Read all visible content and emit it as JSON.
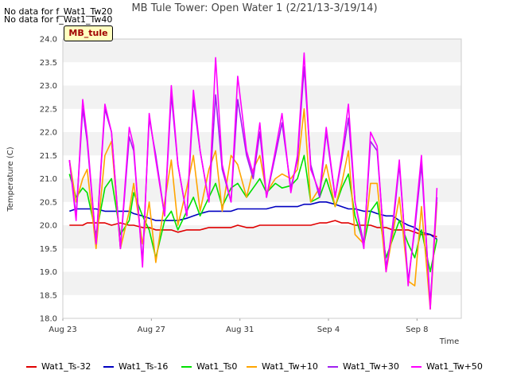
{
  "nodata_messages": [
    "No data for f_Wat1_Tw20",
    "No data for f_Wat1_Tw40"
  ],
  "badge_label": "MB_tule",
  "chart_data": {
    "type": "line",
    "title": "MB Tule Tower: Open Water 1 (2/21/13-3/19/14)",
    "xlabel": "Time",
    "ylabel": "Temperature (C)",
    "x_ticks": [
      "Aug 23",
      "Aug 27",
      "Aug 31",
      "Sep 4",
      "Sep 8"
    ],
    "x_tick_days": [
      0,
      4,
      8,
      12,
      16
    ],
    "xlim_days": [
      0,
      18
    ],
    "ylim": [
      18.0,
      24.0
    ],
    "y_ticks": [
      "18.0",
      "18.5",
      "19.0",
      "19.5",
      "20.0",
      "20.5",
      "21.0",
      "21.5",
      "22.0",
      "22.5",
      "23.0",
      "23.5",
      "24.0"
    ],
    "grid": "horizontal alternating bands",
    "legend_position": "bottom",
    "x_days": [
      0.3,
      0.6,
      0.9,
      1.1,
      1.5,
      1.9,
      2.2,
      2.6,
      3.0,
      3.2,
      3.6,
      3.9,
      4.2,
      4.6,
      4.9,
      5.2,
      5.6,
      5.9,
      6.2,
      6.6,
      6.9,
      7.2,
      7.6,
      7.9,
      8.3,
      8.6,
      8.9,
      9.2,
      9.6,
      9.9,
      10.3,
      10.6,
      10.9,
      11.2,
      11.6,
      11.9,
      12.3,
      12.6,
      12.9,
      13.2,
      13.6,
      13.9,
      14.2,
      14.6,
      14.9,
      15.2,
      15.6,
      15.9,
      16.2,
      16.6,
      16.9
    ],
    "series": [
      {
        "name": "Wat1_Ts-32",
        "color": "#e00000",
        "values": [
          20.0,
          20.0,
          20.0,
          20.05,
          20.05,
          20.05,
          20.0,
          20.05,
          20.0,
          20.0,
          19.95,
          19.95,
          19.9,
          19.9,
          19.9,
          19.85,
          19.9,
          19.9,
          19.9,
          19.95,
          19.95,
          19.95,
          19.95,
          20.0,
          19.95,
          19.95,
          20.0,
          20.0,
          20.0,
          20.0,
          20.0,
          20.0,
          20.0,
          20.0,
          20.05,
          20.05,
          20.1,
          20.05,
          20.05,
          20.0,
          20.0,
          20.0,
          19.95,
          19.95,
          19.9,
          19.9,
          19.9,
          19.85,
          19.8,
          19.8,
          19.75
        ]
      },
      {
        "name": "Wat1_Ts-16",
        "color": "#0000c0",
        "values": [
          20.3,
          20.35,
          20.35,
          20.35,
          20.35,
          20.3,
          20.3,
          20.3,
          20.3,
          20.25,
          20.2,
          20.15,
          20.1,
          20.1,
          20.1,
          20.1,
          20.15,
          20.2,
          20.25,
          20.3,
          20.3,
          20.3,
          20.3,
          20.35,
          20.35,
          20.35,
          20.35,
          20.35,
          20.4,
          20.4,
          20.4,
          20.4,
          20.45,
          20.45,
          20.5,
          20.5,
          20.45,
          20.4,
          20.35,
          20.35,
          20.3,
          20.3,
          20.25,
          20.2,
          20.2,
          20.1,
          20.0,
          19.95,
          19.85,
          19.8,
          19.7
        ]
      },
      {
        "name": "Wat1_Ts0",
        "color": "#00e000",
        "values": [
          21.1,
          20.6,
          20.8,
          20.7,
          19.8,
          20.8,
          21.0,
          19.8,
          20.1,
          20.7,
          20.2,
          19.9,
          19.3,
          20.1,
          20.3,
          19.9,
          20.3,
          20.6,
          20.2,
          20.6,
          20.9,
          20.4,
          20.8,
          20.9,
          20.6,
          20.8,
          21.0,
          20.7,
          20.9,
          20.8,
          20.85,
          21.0,
          21.5,
          20.5,
          20.6,
          21.0,
          20.4,
          20.8,
          21.1,
          20.2,
          19.6,
          20.3,
          20.5,
          19.3,
          19.7,
          20.1,
          19.6,
          19.3,
          19.9,
          19.0,
          19.7
        ]
      },
      {
        "name": "Wat1_Tw+10",
        "color": "#ffa500",
        "values": [
          21.4,
          20.5,
          21.0,
          21.2,
          19.5,
          21.5,
          21.8,
          19.5,
          20.3,
          20.9,
          19.6,
          20.5,
          19.2,
          20.5,
          21.4,
          20.0,
          20.8,
          21.5,
          20.3,
          21.2,
          21.6,
          20.3,
          21.5,
          21.3,
          20.6,
          21.2,
          21.5,
          20.7,
          21.0,
          21.1,
          21.0,
          21.2,
          22.5,
          20.5,
          20.8,
          21.3,
          20.4,
          20.9,
          21.6,
          19.8,
          19.6,
          20.9,
          20.9,
          19.0,
          19.8,
          20.6,
          18.8,
          18.7,
          20.4,
          18.2,
          20.5
        ]
      },
      {
        "name": "Wat1_Tw+30",
        "color": "#a020f0",
        "values": [
          21.4,
          20.2,
          22.5,
          21.8,
          19.6,
          22.5,
          22.0,
          19.5,
          21.9,
          21.6,
          19.2,
          22.3,
          21.5,
          20.2,
          22.8,
          21.3,
          20.2,
          22.7,
          21.6,
          20.5,
          22.8,
          21.2,
          20.5,
          22.7,
          21.5,
          21.0,
          22.0,
          20.6,
          21.5,
          22.2,
          20.8,
          21.4,
          23.4,
          21.3,
          20.6,
          22.0,
          20.6,
          21.4,
          22.3,
          20.5,
          19.6,
          21.8,
          21.6,
          19.1,
          19.9,
          21.3,
          18.8,
          19.9,
          21.3,
          18.3,
          20.6
        ]
      },
      {
        "name": "Wat1_Tw+50",
        "color": "#ff00ff",
        "values": [
          21.4,
          20.1,
          22.7,
          21.9,
          19.6,
          22.6,
          22.0,
          19.5,
          22.1,
          21.7,
          19.1,
          22.4,
          21.4,
          20.2,
          23.0,
          21.3,
          20.2,
          22.9,
          21.6,
          20.5,
          23.6,
          21.3,
          20.5,
          23.2,
          21.6,
          21.1,
          22.2,
          20.6,
          21.6,
          22.4,
          20.7,
          21.5,
          23.7,
          21.2,
          20.7,
          22.1,
          20.6,
          21.5,
          22.6,
          20.5,
          19.5,
          22.0,
          21.7,
          19.0,
          20.0,
          21.4,
          18.7,
          20.0,
          21.5,
          18.2,
          20.8
        ]
      }
    ]
  }
}
